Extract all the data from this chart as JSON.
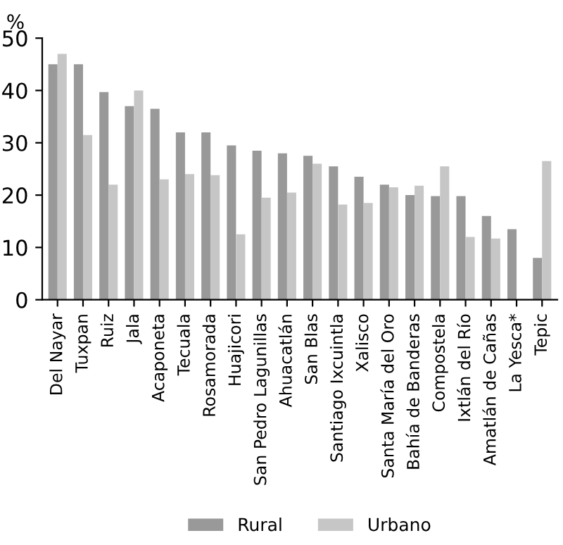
{
  "chart_data": {
    "type": "bar",
    "ylabel": "%",
    "categories": [
      "Del Nayar",
      "Tuxpan",
      "Ruiz",
      "Jala",
      "Acaponeta",
      "Tecuala",
      "Rosamorada",
      "Huajicori",
      "San Pedro Lagunillas",
      "Ahuacatlán",
      "San Blas",
      "Santiago Ixcuintla",
      "Xalisco",
      "Santa María del Oro",
      "Bahía de Banderas",
      "Compostela",
      "Ixtlán del Río",
      "Amatlán de Cañas",
      "La Yesca*",
      "Tepic"
    ],
    "series": [
      {
        "name": "Rural",
        "color": "#999999",
        "values": [
          45,
          45,
          39.7,
          37,
          36.5,
          32,
          32,
          29.5,
          28.5,
          28,
          27.5,
          25.5,
          23.5,
          22,
          20,
          19.8,
          19.8,
          16,
          13.5,
          8
        ]
      },
      {
        "name": "Urbano",
        "color": "#c6c6c6",
        "values": [
          47,
          31.5,
          22,
          40,
          23,
          24,
          23.8,
          12.5,
          19.5,
          20.5,
          26,
          18.2,
          18.5,
          21.5,
          21.8,
          25.5,
          12,
          11.7,
          null,
          26.5
        ]
      }
    ],
    "ylim": [
      0,
      50
    ],
    "yticks": [
      0,
      10,
      20,
      30,
      40,
      50
    ],
    "grid": false,
    "legend": "bottom"
  }
}
